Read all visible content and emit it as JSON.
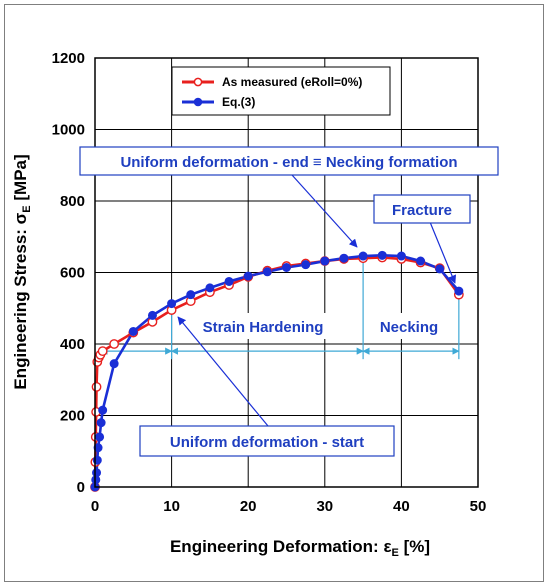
{
  "chart_data": {
    "type": "scatter",
    "title": "",
    "xlabel_main": "Engineering Deformation: ",
    "xlabel_symbol": "ε",
    "xlabel_sub": "E",
    "xlabel_unit": " [%]",
    "ylabel_main": "Engineering Stress: ",
    "ylabel_symbol": "σ",
    "ylabel_sub": "E",
    "ylabel_unit": " [MPa]",
    "xlim": [
      0,
      50
    ],
    "ylim": [
      0,
      1200
    ],
    "x_ticks": [
      0,
      10,
      20,
      30,
      40,
      50
    ],
    "y_ticks": [
      0,
      200,
      400,
      600,
      800,
      1000,
      1200
    ],
    "x_tick_labels": [
      "0",
      "10",
      "20",
      "30",
      "40",
      "50"
    ],
    "y_tick_labels": [
      "0",
      "200",
      "400",
      "600",
      "800",
      "1000",
      "1200"
    ],
    "grid": true,
    "legend_position": "top-center",
    "series": [
      {
        "name": "As measured (eRoll=0%)",
        "color": "#e8201e",
        "marker": "open-circle",
        "x": [
          0.0,
          0.05,
          0.1,
          0.15,
          0.2,
          0.3,
          0.5,
          0.7,
          1.0,
          2.5,
          5.0,
          7.5,
          10.0,
          12.5,
          15.0,
          17.5,
          20.0,
          22.5,
          25.0,
          27.5,
          30.0,
          32.5,
          35.0,
          37.5,
          40.0,
          42.5,
          45.0,
          47.5
        ],
        "y": [
          0,
          70,
          140,
          210,
          280,
          350,
          362,
          370,
          380,
          400,
          432,
          462,
          495,
          520,
          545,
          565,
          588,
          605,
          618,
          625,
          632,
          638,
          640,
          642,
          638,
          628,
          612,
          538
        ]
      },
      {
        "name": "Eq.(3)",
        "color": "#1a2fd6",
        "marker": "filled-circle",
        "x": [
          0.0,
          0.1,
          0.2,
          0.3,
          0.4,
          0.6,
          0.8,
          1.0,
          2.5,
          5.0,
          7.5,
          10.0,
          12.5,
          15.0,
          17.5,
          20.0,
          22.5,
          25.0,
          27.5,
          30.0,
          32.5,
          35.0,
          37.5,
          40.0,
          42.5,
          45.0,
          47.5
        ],
        "y": [
          0,
          20,
          40,
          75,
          110,
          140,
          180,
          215,
          345,
          435,
          480,
          513,
          538,
          557,
          575,
          590,
          602,
          614,
          622,
          632,
          640,
          646,
          648,
          646,
          632,
          610,
          548
        ]
      }
    ],
    "annotations": [
      {
        "id": "necking-formation",
        "text": "Uniform deformation - end ≡ Necking formation",
        "target": [
          35.0,
          646
        ]
      },
      {
        "id": "fracture",
        "text": "Fracture",
        "target": [
          47.5,
          548
        ]
      },
      {
        "id": "strain-hardening",
        "text": "Strain Hardening"
      },
      {
        "id": "necking",
        "text": "Necking"
      },
      {
        "id": "uniform-start",
        "text": "Uniform deformation - start",
        "target": [
          10.0,
          513
        ]
      }
    ],
    "regions": [
      {
        "name": "strain-hardening-span",
        "from": 0.8,
        "to": 10.0,
        "y": 380
      },
      {
        "name": "strain-hardening-span-2",
        "from": 10.0,
        "to": 35.0,
        "y": 380
      },
      {
        "name": "necking-span",
        "from": 35.0,
        "to": 47.5,
        "y": 380
      }
    ],
    "colors": {
      "red_series": "#e8201e",
      "blue_series": "#1a2fd6",
      "annotation_text": "#1f3fc0",
      "annotation_border": "#1f3fc0",
      "span_lines": "#3fa9d6"
    }
  }
}
